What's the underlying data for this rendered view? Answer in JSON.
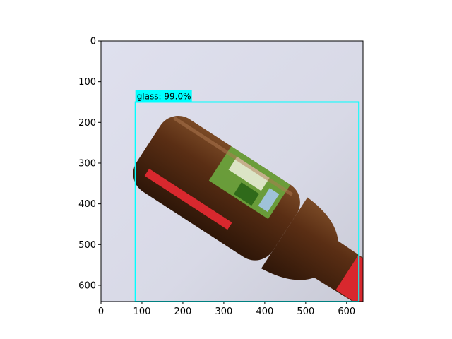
{
  "image_size": {
    "width": 640,
    "height": 640
  },
  "axes": {
    "x_ticks": [
      0,
      100,
      200,
      300,
      400,
      500,
      600
    ],
    "y_ticks": [
      0,
      100,
      200,
      300,
      400,
      500,
      600
    ],
    "xlim": [
      0,
      640
    ],
    "ylim": [
      640,
      0
    ]
  },
  "detections": [
    {
      "class": "glass",
      "score_text": "glass: 99.0%",
      "box": {
        "x1": 84,
        "y1": 150,
        "x2": 630,
        "y2": 640
      },
      "color": "#00ffff"
    }
  ],
  "colors": {
    "background": "#d9dbe8",
    "bottle_glass": "#5a2e14",
    "bottle_label_green": "#6aa23c",
    "bottle_label_red": "#d8282e"
  }
}
